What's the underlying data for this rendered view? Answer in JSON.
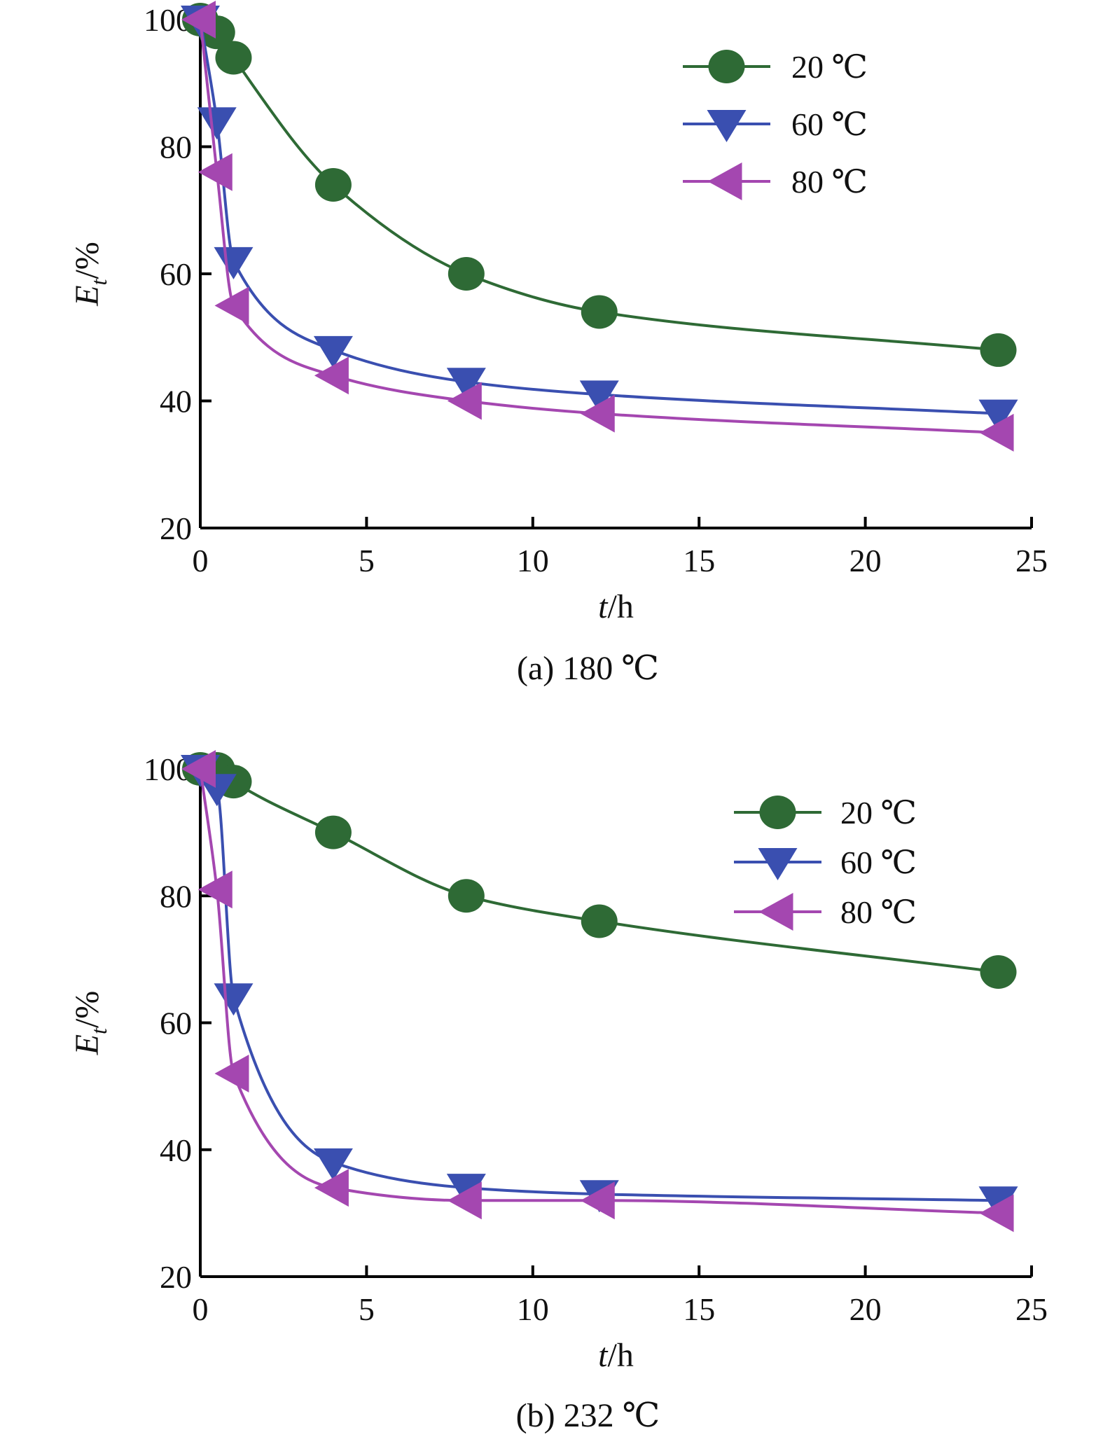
{
  "chart_data": [
    {
      "type": "line",
      "caption": "(a) 180 ℃",
      "xlabel": {
        "var": "t",
        "unit": "/h"
      },
      "ylabel": {
        "var": "E",
        "sub": "t",
        "unit": "/%"
      },
      "xlim": [
        0,
        25
      ],
      "ylim": [
        20,
        100
      ],
      "xticks": [
        0,
        5,
        10,
        15,
        20,
        25
      ],
      "yticks": [
        20,
        40,
        60,
        80,
        100
      ],
      "grid": false,
      "legend_position": "top-right",
      "series": [
        {
          "name": "20 ℃",
          "marker": "circle",
          "color": "#2e6a35",
          "x": [
            0,
            0.5,
            1,
            4,
            8,
            12,
            24
          ],
          "y": [
            100,
            98,
            94,
            74,
            60,
            54,
            48
          ]
        },
        {
          "name": "60 ℃",
          "marker": "triangle-down",
          "color": "#3a4fb0",
          "x": [
            0,
            0.5,
            1,
            4,
            8,
            12,
            24
          ],
          "y": [
            100,
            84,
            62,
            48,
            43,
            41,
            38
          ]
        },
        {
          "name": "80 ℃",
          "marker": "triangle-left",
          "color": "#a447b0",
          "x": [
            0,
            0.5,
            1,
            4,
            8,
            12,
            24
          ],
          "y": [
            100,
            76,
            55,
            44,
            40,
            38,
            35
          ]
        }
      ]
    },
    {
      "type": "line",
      "caption": "(b) 232 ℃",
      "xlabel": {
        "var": "t",
        "unit": "/h"
      },
      "ylabel": {
        "var": "E",
        "sub": "t",
        "unit": "/%"
      },
      "xlim": [
        0,
        25
      ],
      "ylim": [
        20,
        100
      ],
      "xticks": [
        0,
        5,
        10,
        15,
        20,
        25
      ],
      "yticks": [
        20,
        40,
        60,
        80,
        100
      ],
      "grid": false,
      "legend_position": "top-right",
      "series": [
        {
          "name": "20 ℃",
          "marker": "circle",
          "color": "#2e6a35",
          "x": [
            0,
            0.5,
            1,
            4,
            8,
            12,
            24
          ],
          "y": [
            100,
            100,
            98,
            90,
            80,
            76,
            68
          ]
        },
        {
          "name": "60 ℃",
          "marker": "triangle-down",
          "color": "#3a4fb0",
          "x": [
            0,
            0.5,
            1,
            4,
            8,
            12,
            24
          ],
          "y": [
            100,
            97,
            64,
            38,
            34,
            33,
            32
          ]
        },
        {
          "name": "80 ℃",
          "marker": "triangle-left",
          "color": "#a447b0",
          "x": [
            0,
            0.5,
            1,
            4,
            8,
            12,
            24
          ],
          "y": [
            100,
            81,
            52,
            34,
            32,
            32,
            30
          ]
        }
      ]
    }
  ]
}
